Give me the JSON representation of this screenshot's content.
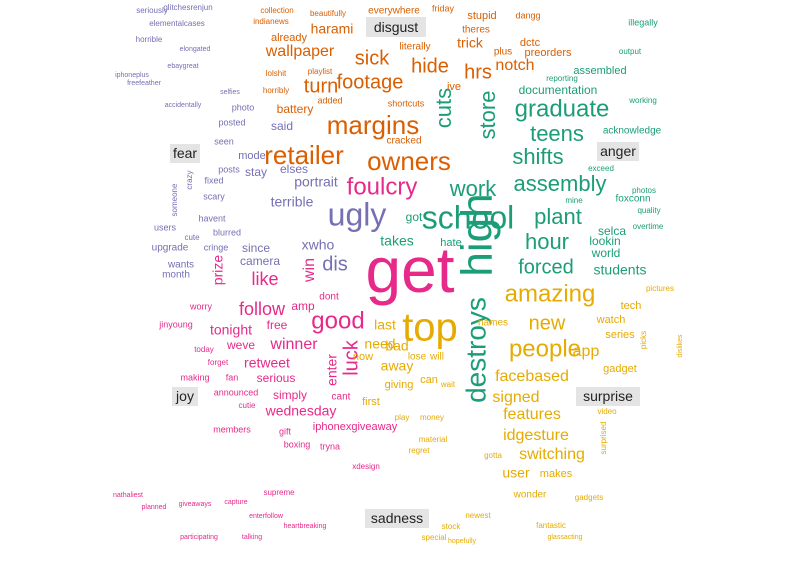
{
  "chart_data": {
    "type": "wordcloud",
    "title": "",
    "colors": {
      "disgust": "#d95f02",
      "anger": "#1b9e77",
      "fear": "#7570b3",
      "joy": "#e7298a",
      "surprise": "#e6ab02",
      "sadness": "#8c8c8c"
    },
    "emotion_labels": [
      "disgust",
      "anger",
      "fear",
      "joy",
      "surprise",
      "sadness"
    ],
    "words": [
      {
        "text": "get",
        "emotion": "joy",
        "weight": 64
      },
      {
        "text": "high",
        "emotion": "anger",
        "weight": 44
      },
      {
        "text": "top",
        "emotion": "surprise",
        "weight": 40
      },
      {
        "text": "school",
        "emotion": "anger",
        "weight": 32
      },
      {
        "text": "ugly",
        "emotion": "fear",
        "weight": 32
      },
      {
        "text": "destroys",
        "emotion": "anger",
        "weight": 28
      },
      {
        "text": "owners",
        "emotion": "disgust",
        "weight": 26
      },
      {
        "text": "retailer",
        "emotion": "disgust",
        "weight": 26
      },
      {
        "text": "margins",
        "emotion": "disgust",
        "weight": 26
      },
      {
        "text": "foulcry",
        "emotion": "joy",
        "weight": 24
      },
      {
        "text": "amazing",
        "emotion": "surprise",
        "weight": 24
      },
      {
        "text": "people",
        "emotion": "surprise",
        "weight": 24
      },
      {
        "text": "graduate",
        "emotion": "anger",
        "weight": 24
      },
      {
        "text": "good",
        "emotion": "joy",
        "weight": 24
      },
      {
        "text": "store",
        "emotion": "anger",
        "weight": 22
      },
      {
        "text": "cuts",
        "emotion": "anger",
        "weight": 22
      },
      {
        "text": "work",
        "emotion": "anger",
        "weight": 22
      },
      {
        "text": "assembly",
        "emotion": "anger",
        "weight": 22
      },
      {
        "text": "teens",
        "emotion": "anger",
        "weight": 22
      },
      {
        "text": "shifts",
        "emotion": "anger",
        "weight": 22
      },
      {
        "text": "plant",
        "emotion": "anger",
        "weight": 22
      },
      {
        "text": "hour",
        "emotion": "anger",
        "weight": 22
      },
      {
        "text": "hrs",
        "emotion": "disgust",
        "weight": 20
      },
      {
        "text": "footage",
        "emotion": "disgust",
        "weight": 20
      },
      {
        "text": "turn",
        "emotion": "disgust",
        "weight": 20
      },
      {
        "text": "sick",
        "emotion": "disgust",
        "weight": 20
      },
      {
        "text": "hide",
        "emotion": "disgust",
        "weight": 20
      },
      {
        "text": "forced",
        "emotion": "anger",
        "weight": 20
      },
      {
        "text": "new",
        "emotion": "surprise",
        "weight": 20
      },
      {
        "text": "dis",
        "emotion": "fear",
        "weight": 20
      },
      {
        "text": "luck",
        "emotion": "joy",
        "weight": 20
      },
      {
        "text": "follow",
        "emotion": "joy",
        "weight": 18
      },
      {
        "text": "like",
        "emotion": "joy",
        "weight": 18
      },
      {
        "text": "win",
        "emotion": "joy",
        "weight": 16
      },
      {
        "text": "notch",
        "emotion": "disgust",
        "weight": 16
      },
      {
        "text": "wallpaper",
        "emotion": "disgust",
        "weight": 16
      },
      {
        "text": "app",
        "emotion": "surprise",
        "weight": 16
      },
      {
        "text": "features",
        "emotion": "surprise",
        "weight": 16
      },
      {
        "text": "signed",
        "emotion": "surprise",
        "weight": 16
      },
      {
        "text": "switching",
        "emotion": "surprise",
        "weight": 16
      },
      {
        "text": "idgesture",
        "emotion": "surprise",
        "weight": 16
      },
      {
        "text": "facebased",
        "emotion": "surprise",
        "weight": 16
      },
      {
        "text": "winner",
        "emotion": "joy",
        "weight": 16
      },
      {
        "text": "harami",
        "emotion": "disgust",
        "weight": 14
      },
      {
        "text": "trick",
        "emotion": "disgust",
        "weight": 14
      },
      {
        "text": "portrait",
        "emotion": "fear",
        "weight": 14
      },
      {
        "text": "terrible",
        "emotion": "fear",
        "weight": 14
      },
      {
        "text": "xwho",
        "emotion": "fear",
        "weight": 14
      },
      {
        "text": "wednesday",
        "emotion": "joy",
        "weight": 14
      },
      {
        "text": "retweet",
        "emotion": "joy",
        "weight": 14
      },
      {
        "text": "tonight",
        "emotion": "joy",
        "weight": 14
      },
      {
        "text": "prize",
        "emotion": "joy",
        "weight": 14
      },
      {
        "text": "enter",
        "emotion": "joy",
        "weight": 14
      },
      {
        "text": "away",
        "emotion": "surprise",
        "weight": 14
      },
      {
        "text": "bad",
        "emotion": "surprise",
        "weight": 14
      },
      {
        "text": "need",
        "emotion": "surprise",
        "weight": 14
      },
      {
        "text": "last",
        "emotion": "surprise",
        "weight": 14
      },
      {
        "text": "user",
        "emotion": "surprise",
        "weight": 14
      },
      {
        "text": "takes",
        "emotion": "anger",
        "weight": 14
      },
      {
        "text": "students",
        "emotion": "anger",
        "weight": 14
      },
      {
        "text": "documentation",
        "emotion": "anger",
        "weight": 12
      },
      {
        "text": "acknowledge",
        "emotion": "anger",
        "weight": 10
      },
      {
        "text": "foxconn",
        "emotion": "anger",
        "weight": 10
      },
      {
        "text": "selca",
        "emotion": "anger",
        "weight": 12
      },
      {
        "text": "lookin",
        "emotion": "anger",
        "weight": 12
      },
      {
        "text": "world",
        "emotion": "anger",
        "weight": 12
      },
      {
        "text": "assembled",
        "emotion": "anger",
        "weight": 11
      },
      {
        "text": "preorders",
        "emotion": "disgust",
        "weight": 11
      },
      {
        "text": "stupid",
        "emotion": "disgust",
        "weight": 11
      },
      {
        "text": "already",
        "emotion": "disgust",
        "weight": 11
      },
      {
        "text": "battery",
        "emotion": "disgust",
        "weight": 12
      },
      {
        "text": "said",
        "emotion": "fear",
        "weight": 12
      },
      {
        "text": "stay",
        "emotion": "fear",
        "weight": 12
      },
      {
        "text": "elses",
        "emotion": "fear",
        "weight": 12
      },
      {
        "text": "camera",
        "emotion": "fear",
        "weight": 12
      },
      {
        "text": "since",
        "emotion": "fear",
        "weight": 12
      },
      {
        "text": "mode",
        "emotion": "fear",
        "weight": 11
      },
      {
        "text": "free",
        "emotion": "joy",
        "weight": 12
      },
      {
        "text": "weve",
        "emotion": "joy",
        "weight": 12
      },
      {
        "text": "serious",
        "emotion": "joy",
        "weight": 12
      },
      {
        "text": "simply",
        "emotion": "joy",
        "weight": 12
      },
      {
        "text": "iphonexgiveaway",
        "emotion": "joy",
        "weight": 11
      },
      {
        "text": "amp",
        "emotion": "joy",
        "weight": 12
      },
      {
        "text": "tech",
        "emotion": "surprise",
        "weight": 11
      },
      {
        "text": "series",
        "emotion": "surprise",
        "weight": 11
      },
      {
        "text": "gadget",
        "emotion": "surprise",
        "weight": 11
      },
      {
        "text": "watch",
        "emotion": "surprise",
        "weight": 11
      },
      {
        "text": "makes",
        "emotion": "surprise",
        "weight": 11
      },
      {
        "text": "wonder",
        "emotion": "surprise",
        "weight": 10
      },
      {
        "text": "names",
        "emotion": "surprise",
        "weight": 10
      },
      {
        "text": "giving",
        "emotion": "surprise",
        "weight": 11
      },
      {
        "text": "first",
        "emotion": "surprise",
        "weight": 11
      },
      {
        "text": "lose",
        "emotion": "surprise",
        "weight": 10
      },
      {
        "text": "will",
        "emotion": "surprise",
        "weight": 10
      },
      {
        "text": "can",
        "emotion": "surprise",
        "weight": 11
      },
      {
        "text": "now",
        "emotion": "surprise",
        "weight": 11
      },
      {
        "text": "hate",
        "emotion": "anger",
        "weight": 11
      },
      {
        "text": "got",
        "emotion": "anger",
        "weight": 12
      },
      {
        "text": "dctc",
        "emotion": "disgust",
        "weight": 11
      },
      {
        "text": "ive",
        "emotion": "disgust",
        "weight": 11
      },
      {
        "text": "cracked",
        "emotion": "disgust",
        "weight": 10
      },
      {
        "text": "literally",
        "emotion": "disgust",
        "weight": 10
      },
      {
        "text": "everywhere",
        "emotion": "disgust",
        "weight": 10
      },
      {
        "text": "theres",
        "emotion": "disgust",
        "weight": 10
      },
      {
        "text": "plus",
        "emotion": "disgust",
        "weight": 10
      },
      {
        "text": "dangg",
        "emotion": "disgust",
        "weight": 9
      },
      {
        "text": "friday",
        "emotion": "disgust",
        "weight": 9
      },
      {
        "text": "shortcuts",
        "emotion": "disgust",
        "weight": 9
      },
      {
        "text": "added",
        "emotion": "disgust",
        "weight": 9
      },
      {
        "text": "playlist",
        "emotion": "disgust",
        "weight": 8
      },
      {
        "text": "horribly",
        "emotion": "disgust",
        "weight": 8
      },
      {
        "text": "lolshit",
        "emotion": "disgust",
        "weight": 8
      },
      {
        "text": "collection",
        "emotion": "disgust",
        "weight": 8
      },
      {
        "text": "beautifully",
        "emotion": "disgust",
        "weight": 8
      },
      {
        "text": "indianews",
        "emotion": "disgust",
        "weight": 8
      },
      {
        "text": "boxing",
        "emotion": "joy",
        "weight": 9
      },
      {
        "text": "tryna",
        "emotion": "joy",
        "weight": 9
      },
      {
        "text": "members",
        "emotion": "joy",
        "weight": 9
      },
      {
        "text": "gift",
        "emotion": "joy",
        "weight": 9
      },
      {
        "text": "cant",
        "emotion": "joy",
        "weight": 10
      },
      {
        "text": "dont",
        "emotion": "joy",
        "weight": 10
      },
      {
        "text": "making",
        "emotion": "joy",
        "weight": 9
      },
      {
        "text": "fan",
        "emotion": "joy",
        "weight": 9
      },
      {
        "text": "announced",
        "emotion": "joy",
        "weight": 9
      },
      {
        "text": "cutie",
        "emotion": "joy",
        "weight": 8
      },
      {
        "text": "forget",
        "emotion": "joy",
        "weight": 8
      },
      {
        "text": "today",
        "emotion": "joy",
        "weight": 8
      },
      {
        "text": "jinyoung",
        "emotion": "joy",
        "weight": 9
      },
      {
        "text": "worry",
        "emotion": "joy",
        "weight": 9
      },
      {
        "text": "month",
        "emotion": "fear",
        "weight": 10
      },
      {
        "text": "wants",
        "emotion": "fear",
        "weight": 10
      },
      {
        "text": "upgrade",
        "emotion": "fear",
        "weight": 10
      },
      {
        "text": "cringe",
        "emotion": "fear",
        "weight": 9
      },
      {
        "text": "blurred",
        "emotion": "fear",
        "weight": 9
      },
      {
        "text": "havent",
        "emotion": "fear",
        "weight": 9
      },
      {
        "text": "scary",
        "emotion": "fear",
        "weight": 9
      },
      {
        "text": "posts",
        "emotion": "fear",
        "weight": 9
      },
      {
        "text": "fixed",
        "emotion": "fear",
        "weight": 9
      },
      {
        "text": "seen",
        "emotion": "fear",
        "weight": 9
      },
      {
        "text": "posted",
        "emotion": "fear",
        "weight": 9
      },
      {
        "text": "photo",
        "emotion": "fear",
        "weight": 9
      },
      {
        "text": "users",
        "emotion": "fear",
        "weight": 9
      },
      {
        "text": "cute",
        "emotion": "fear",
        "weight": 8
      },
      {
        "text": "someone",
        "emotion": "fear",
        "weight": 8
      },
      {
        "text": "crazy",
        "emotion": "fear",
        "weight": 8
      },
      {
        "text": "quality",
        "emotion": "anger",
        "weight": 8
      },
      {
        "text": "overtime",
        "emotion": "anger",
        "weight": 8
      },
      {
        "text": "photos",
        "emotion": "anger",
        "weight": 8
      },
      {
        "text": "illegally",
        "emotion": "anger",
        "weight": 9
      },
      {
        "text": "reporting",
        "emotion": "anger",
        "weight": 8
      },
      {
        "text": "output",
        "emotion": "anger",
        "weight": 8
      },
      {
        "text": "working",
        "emotion": "anger",
        "weight": 8
      },
      {
        "text": "exceed",
        "emotion": "anger",
        "weight": 8
      },
      {
        "text": "mine",
        "emotion": "anger",
        "weight": 8
      },
      {
        "text": "pictures",
        "emotion": "surprise",
        "weight": 8
      },
      {
        "text": "dislikes",
        "emotion": "surprise",
        "weight": 7
      },
      {
        "text": "picks",
        "emotion": "surprise",
        "weight": 8
      },
      {
        "text": "video",
        "emotion": "surprise",
        "weight": 8
      },
      {
        "text": "surprised",
        "emotion": "surprise",
        "weight": 8
      },
      {
        "text": "fantastic",
        "emotion": "surprise",
        "weight": 8
      },
      {
        "text": "glassacting",
        "emotion": "surprise",
        "weight": 7
      },
      {
        "text": "gadgets",
        "emotion": "surprise",
        "weight": 8
      },
      {
        "text": "newest",
        "emotion": "surprise",
        "weight": 8
      },
      {
        "text": "hopefully",
        "emotion": "surprise",
        "weight": 7
      },
      {
        "text": "special",
        "emotion": "surprise",
        "weight": 8
      },
      {
        "text": "stock",
        "emotion": "surprise",
        "weight": 8
      },
      {
        "text": "wait",
        "emotion": "surprise",
        "weight": 8
      },
      {
        "text": "play",
        "emotion": "surprise",
        "weight": 8
      },
      {
        "text": "money",
        "emotion": "surprise",
        "weight": 8
      },
      {
        "text": "material",
        "emotion": "surprise",
        "weight": 8
      },
      {
        "text": "regret",
        "emotion": "surprise",
        "weight": 8
      },
      {
        "text": "gotta",
        "emotion": "surprise",
        "weight": 8
      },
      {
        "text": "xdesign",
        "emotion": "joy",
        "weight": 8
      },
      {
        "text": "heartbreaking",
        "emotion": "joy",
        "weight": 7
      },
      {
        "text": "enterfollow",
        "emotion": "joy",
        "weight": 7
      },
      {
        "text": "supreme",
        "emotion": "joy",
        "weight": 8
      },
      {
        "text": "capture",
        "emotion": "joy",
        "weight": 7
      },
      {
        "text": "giveaways",
        "emotion": "joy",
        "weight": 7
      },
      {
        "text": "planned",
        "emotion": "joy",
        "weight": 7
      },
      {
        "text": "nathaliest",
        "emotion": "joy",
        "weight": 7
      },
      {
        "text": "participating",
        "emotion": "joy",
        "weight": 7
      },
      {
        "text": "talking",
        "emotion": "joy",
        "weight": 7
      },
      {
        "text": "glitchesrenjun",
        "emotion": "fear",
        "weight": 8
      },
      {
        "text": "elementalcases",
        "emotion": "fear",
        "weight": 8
      },
      {
        "text": "seriously",
        "emotion": "fear",
        "weight": 8
      },
      {
        "text": "horrible",
        "emotion": "fear",
        "weight": 8
      },
      {
        "text": "freefeather",
        "emotion": "fear",
        "weight": 7
      },
      {
        "text": "iphoneplus",
        "emotion": "fear",
        "weight": 7
      },
      {
        "text": "ebaygreat",
        "emotion": "fear",
        "weight": 7
      },
      {
        "text": "accidentally",
        "emotion": "fear",
        "weight": 7
      },
      {
        "text": "elongated",
        "emotion": "fear",
        "weight": 7
      },
      {
        "text": "selfies",
        "emotion": "fear",
        "weight": 7
      }
    ]
  }
}
